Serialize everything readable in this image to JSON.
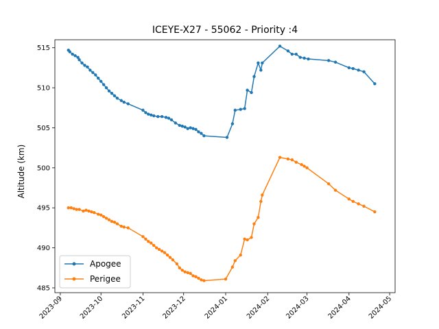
{
  "chart_data": {
    "type": "line",
    "title": "ICEYE-X27 - 55062 - Priority :4",
    "xlabel": "",
    "ylabel": "Altitude (km)",
    "xlim": [
      "2023-08-28",
      "2024-05-05"
    ],
    "ylim": [
      484.4,
      516.0
    ],
    "x_ticks": [
      "2023-09",
      "2023-10",
      "2023-11",
      "2023-12",
      "2024-01",
      "2024-02",
      "2024-03",
      "2024-04",
      "2024-05"
    ],
    "y_ticks": [
      485,
      490,
      495,
      500,
      505,
      510,
      515
    ],
    "grid": false,
    "legend_position": "lower-left",
    "series": [
      {
        "name": "Apogee",
        "color": "#1f77b4",
        "marker": "circle",
        "points": [
          [
            "2023-09-07",
            514.7
          ],
          [
            "2023-09-08",
            514.5
          ],
          [
            "2023-09-10",
            514.2
          ],
          [
            "2023-09-12",
            514.0
          ],
          [
            "2023-09-14",
            513.8
          ],
          [
            "2023-09-15",
            513.5
          ],
          [
            "2023-09-17",
            513.1
          ],
          [
            "2023-09-19",
            512.8
          ],
          [
            "2023-09-21",
            512.6
          ],
          [
            "2023-09-23",
            512.2
          ],
          [
            "2023-09-25",
            511.9
          ],
          [
            "2023-09-27",
            511.6
          ],
          [
            "2023-09-29",
            511.2
          ],
          [
            "2023-10-01",
            510.8
          ],
          [
            "2023-10-03",
            510.4
          ],
          [
            "2023-10-05",
            510.0
          ],
          [
            "2023-10-07",
            509.6
          ],
          [
            "2023-10-09",
            509.3
          ],
          [
            "2023-10-11",
            509.0
          ],
          [
            "2023-10-13",
            508.7
          ],
          [
            "2023-10-16",
            508.4
          ],
          [
            "2023-10-18",
            508.2
          ],
          [
            "2023-10-21",
            508.0
          ],
          [
            "2023-11-01",
            507.2
          ],
          [
            "2023-11-03",
            506.9
          ],
          [
            "2023-11-05",
            506.7
          ],
          [
            "2023-11-07",
            506.6
          ],
          [
            "2023-11-09",
            506.5
          ],
          [
            "2023-11-12",
            506.4
          ],
          [
            "2023-11-15",
            506.4
          ],
          [
            "2023-11-18",
            506.3
          ],
          [
            "2023-11-20",
            506.2
          ],
          [
            "2023-11-22",
            506.0
          ],
          [
            "2023-11-25",
            505.6
          ],
          [
            "2023-11-28",
            505.3
          ],
          [
            "2023-11-30",
            505.2
          ],
          [
            "2023-12-02",
            505.1
          ],
          [
            "2023-12-04",
            504.9
          ],
          [
            "2023-12-06",
            505.0
          ],
          [
            "2023-12-08",
            504.9
          ],
          [
            "2023-12-10",
            504.8
          ],
          [
            "2023-12-12",
            504.5
          ],
          [
            "2023-12-14",
            504.3
          ],
          [
            "2023-12-16",
            504.0
          ],
          [
            "2024-01-02",
            503.8
          ],
          [
            "2024-01-06",
            505.5
          ],
          [
            "2024-01-08",
            507.2
          ],
          [
            "2024-01-12",
            507.3
          ],
          [
            "2024-01-15",
            507.4
          ],
          [
            "2024-01-17",
            509.7
          ],
          [
            "2024-01-20",
            509.4
          ],
          [
            "2024-01-22",
            511.4
          ],
          [
            "2024-01-25",
            513.1
          ],
          [
            "2024-01-27",
            512.2
          ],
          [
            "2024-01-28",
            513.1
          ],
          [
            "2024-02-10",
            515.2
          ],
          [
            "2024-02-16",
            514.6
          ],
          [
            "2024-02-19",
            514.2
          ],
          [
            "2024-02-22",
            514.2
          ],
          [
            "2024-02-25",
            513.8
          ],
          [
            "2024-02-28",
            513.7
          ],
          [
            "2024-03-02",
            513.6
          ],
          [
            "2024-03-17",
            513.4
          ],
          [
            "2024-03-22",
            513.2
          ],
          [
            "2024-04-01",
            512.5
          ],
          [
            "2024-04-04",
            512.4
          ],
          [
            "2024-04-08",
            512.2
          ],
          [
            "2024-04-12",
            512.0
          ],
          [
            "2024-04-20",
            510.5
          ]
        ]
      },
      {
        "name": "Perigee",
        "color": "#ff7f0e",
        "marker": "circle",
        "points": [
          [
            "2023-09-07",
            495.0
          ],
          [
            "2023-09-09",
            495.0
          ],
          [
            "2023-09-11",
            494.9
          ],
          [
            "2023-09-13",
            494.8
          ],
          [
            "2023-09-15",
            494.8
          ],
          [
            "2023-09-18",
            494.6
          ],
          [
            "2023-09-20",
            494.7
          ],
          [
            "2023-09-22",
            494.6
          ],
          [
            "2023-09-24",
            494.5
          ],
          [
            "2023-09-26",
            494.4
          ],
          [
            "2023-09-29",
            494.2
          ],
          [
            "2023-10-01",
            494.1
          ],
          [
            "2023-10-03",
            493.9
          ],
          [
            "2023-10-05",
            493.7
          ],
          [
            "2023-10-07",
            493.5
          ],
          [
            "2023-10-09",
            493.3
          ],
          [
            "2023-10-11",
            493.2
          ],
          [
            "2023-10-13",
            493.0
          ],
          [
            "2023-10-16",
            492.7
          ],
          [
            "2023-10-18",
            492.6
          ],
          [
            "2023-10-21",
            492.5
          ],
          [
            "2023-11-01",
            491.4
          ],
          [
            "2023-11-03",
            491.1
          ],
          [
            "2023-11-05",
            490.8
          ],
          [
            "2023-11-07",
            490.6
          ],
          [
            "2023-11-09",
            490.3
          ],
          [
            "2023-11-11",
            490.0
          ],
          [
            "2023-11-13",
            489.8
          ],
          [
            "2023-11-15",
            489.6
          ],
          [
            "2023-11-17",
            489.4
          ],
          [
            "2023-11-19",
            489.1
          ],
          [
            "2023-11-21",
            488.8
          ],
          [
            "2023-11-23",
            488.5
          ],
          [
            "2023-11-26",
            488.0
          ],
          [
            "2023-11-28",
            487.5
          ],
          [
            "2023-11-30",
            487.2
          ],
          [
            "2023-12-02",
            487.0
          ],
          [
            "2023-12-04",
            486.9
          ],
          [
            "2023-12-06",
            486.8
          ],
          [
            "2023-12-08",
            486.5
          ],
          [
            "2023-12-10",
            486.4
          ],
          [
            "2023-12-12",
            486.2
          ],
          [
            "2023-12-14",
            486.0
          ],
          [
            "2023-12-16",
            485.9
          ],
          [
            "2024-01-01",
            486.1
          ],
          [
            "2024-01-06",
            487.6
          ],
          [
            "2024-01-08",
            488.4
          ],
          [
            "2024-01-12",
            489.1
          ],
          [
            "2024-01-15",
            491.1
          ],
          [
            "2024-01-17",
            491.0
          ],
          [
            "2024-01-20",
            491.3
          ],
          [
            "2024-01-22",
            493.0
          ],
          [
            "2024-01-25",
            493.8
          ],
          [
            "2024-01-27",
            495.8
          ],
          [
            "2024-01-28",
            496.6
          ],
          [
            "2024-02-10",
            501.3
          ],
          [
            "2024-02-16",
            501.1
          ],
          [
            "2024-02-19",
            501.0
          ],
          [
            "2024-02-22",
            500.7
          ],
          [
            "2024-02-26",
            500.4
          ],
          [
            "2024-02-28",
            500.2
          ],
          [
            "2024-03-01",
            500.0
          ],
          [
            "2024-03-17",
            498.0
          ],
          [
            "2024-03-22",
            497.2
          ],
          [
            "2024-04-01",
            496.1
          ],
          [
            "2024-04-04",
            495.8
          ],
          [
            "2024-04-08",
            495.5
          ],
          [
            "2024-04-12",
            495.2
          ],
          [
            "2024-04-20",
            494.5
          ]
        ]
      }
    ]
  }
}
